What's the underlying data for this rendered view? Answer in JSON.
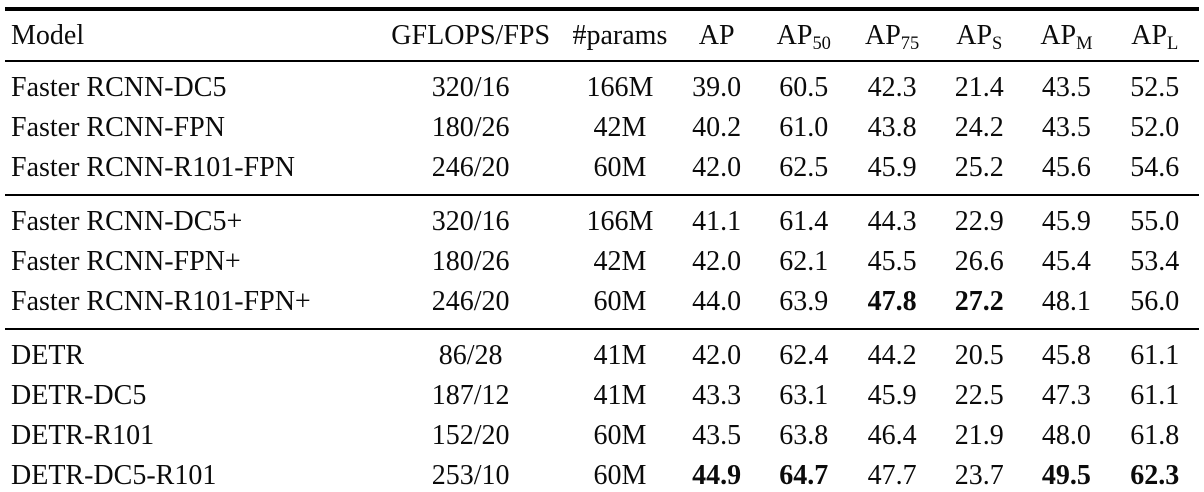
{
  "page": {
    "background": "#ffffff",
    "text_color": "#0b0b0b",
    "rule_color": "#000000"
  },
  "table": {
    "header": {
      "model": "Model",
      "gflops_fps": "GFLOPS/FPS",
      "params": "#params",
      "metrics": [
        {
          "base": "AP",
          "sub": ""
        },
        {
          "base": "AP",
          "sub": "50"
        },
        {
          "base": "AP",
          "sub": "75"
        },
        {
          "base": "AP",
          "sub": "S"
        },
        {
          "base": "AP",
          "sub": "M"
        },
        {
          "base": "AP",
          "sub": "L"
        }
      ]
    },
    "groups": [
      {
        "rows": [
          {
            "model": "Faster RCNN-DC5",
            "gflops_fps": "320/16",
            "params": "166M",
            "metrics": [
              "39.0",
              "60.5",
              "42.3",
              "21.4",
              "43.5",
              "52.5"
            ],
            "bold": []
          },
          {
            "model": "Faster RCNN-FPN",
            "gflops_fps": "180/26",
            "params": "42M",
            "metrics": [
              "40.2",
              "61.0",
              "43.8",
              "24.2",
              "43.5",
              "52.0"
            ],
            "bold": []
          },
          {
            "model": "Faster RCNN-R101-FPN",
            "gflops_fps": "246/20",
            "params": "60M",
            "metrics": [
              "42.0",
              "62.5",
              "45.9",
              "25.2",
              "45.6",
              "54.6"
            ],
            "bold": []
          }
        ]
      },
      {
        "rows": [
          {
            "model": "Faster RCNN-DC5+",
            "gflops_fps": "320/16",
            "params": "166M",
            "metrics": [
              "41.1",
              "61.4",
              "44.3",
              "22.9",
              "45.9",
              "55.0"
            ],
            "bold": []
          },
          {
            "model": "Faster RCNN-FPN+",
            "gflops_fps": "180/26",
            "params": "42M",
            "metrics": [
              "42.0",
              "62.1",
              "45.5",
              "26.6",
              "45.4",
              "53.4"
            ],
            "bold": []
          },
          {
            "model": "Faster RCNN-R101-FPN+",
            "gflops_fps": "246/20",
            "params": "60M",
            "metrics": [
              "44.0",
              "63.9",
              "47.8",
              "27.2",
              "48.1",
              "56.0"
            ],
            "bold": [
              2,
              3
            ]
          }
        ]
      },
      {
        "rows": [
          {
            "model": "DETR",
            "gflops_fps": "86/28",
            "params": "41M",
            "metrics": [
              "42.0",
              "62.4",
              "44.2",
              "20.5",
              "45.8",
              "61.1"
            ],
            "bold": []
          },
          {
            "model": "DETR-DC5",
            "gflops_fps": "187/12",
            "params": "41M",
            "metrics": [
              "43.3",
              "63.1",
              "45.9",
              "22.5",
              "47.3",
              "61.1"
            ],
            "bold": []
          },
          {
            "model": "DETR-R101",
            "gflops_fps": "152/20",
            "params": "60M",
            "metrics": [
              "43.5",
              "63.8",
              "46.4",
              "21.9",
              "48.0",
              "61.8"
            ],
            "bold": []
          },
          {
            "model": "DETR-DC5-R101",
            "gflops_fps": "253/10",
            "params": "60M",
            "metrics": [
              "44.9",
              "64.7",
              "47.7",
              "23.7",
              "49.5",
              "62.3"
            ],
            "bold": [
              0,
              1,
              4,
              5
            ]
          }
        ]
      }
    ]
  }
}
